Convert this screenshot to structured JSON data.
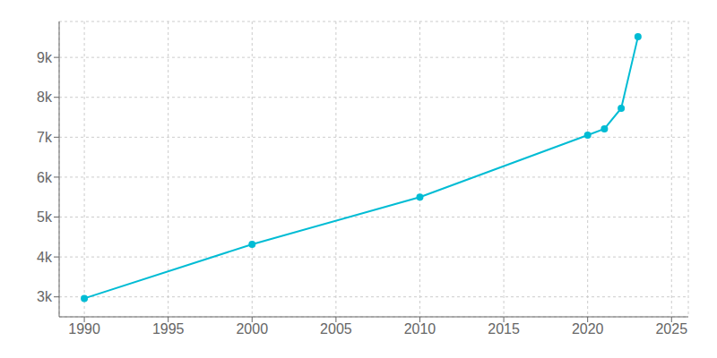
{
  "chart_data": {
    "type": "line",
    "x": [
      1990,
      2000,
      2010,
      2020,
      2021,
      2022,
      2023
    ],
    "values": [
      2962,
      4317,
      5499,
      7053,
      7210,
      7726,
      9516
    ],
    "color": "#00bcd4",
    "marker": "circle",
    "line_style": "solid",
    "xlim": [
      1988.5,
      2026
    ],
    "ylim": [
      2500,
      9900
    ],
    "xticks": [
      1990,
      1995,
      2000,
      2005,
      2010,
      2015,
      2020,
      2025
    ],
    "yticks": [
      {
        "value": 3000,
        "label": "3k"
      },
      {
        "value": 4000,
        "label": "4k"
      },
      {
        "value": 5000,
        "label": "5k"
      },
      {
        "value": 6000,
        "label": "6k"
      },
      {
        "value": 7000,
        "label": "7k"
      },
      {
        "value": 8000,
        "label": "8k"
      },
      {
        "value": 9000,
        "label": "9k"
      }
    ],
    "grid": true
  }
}
